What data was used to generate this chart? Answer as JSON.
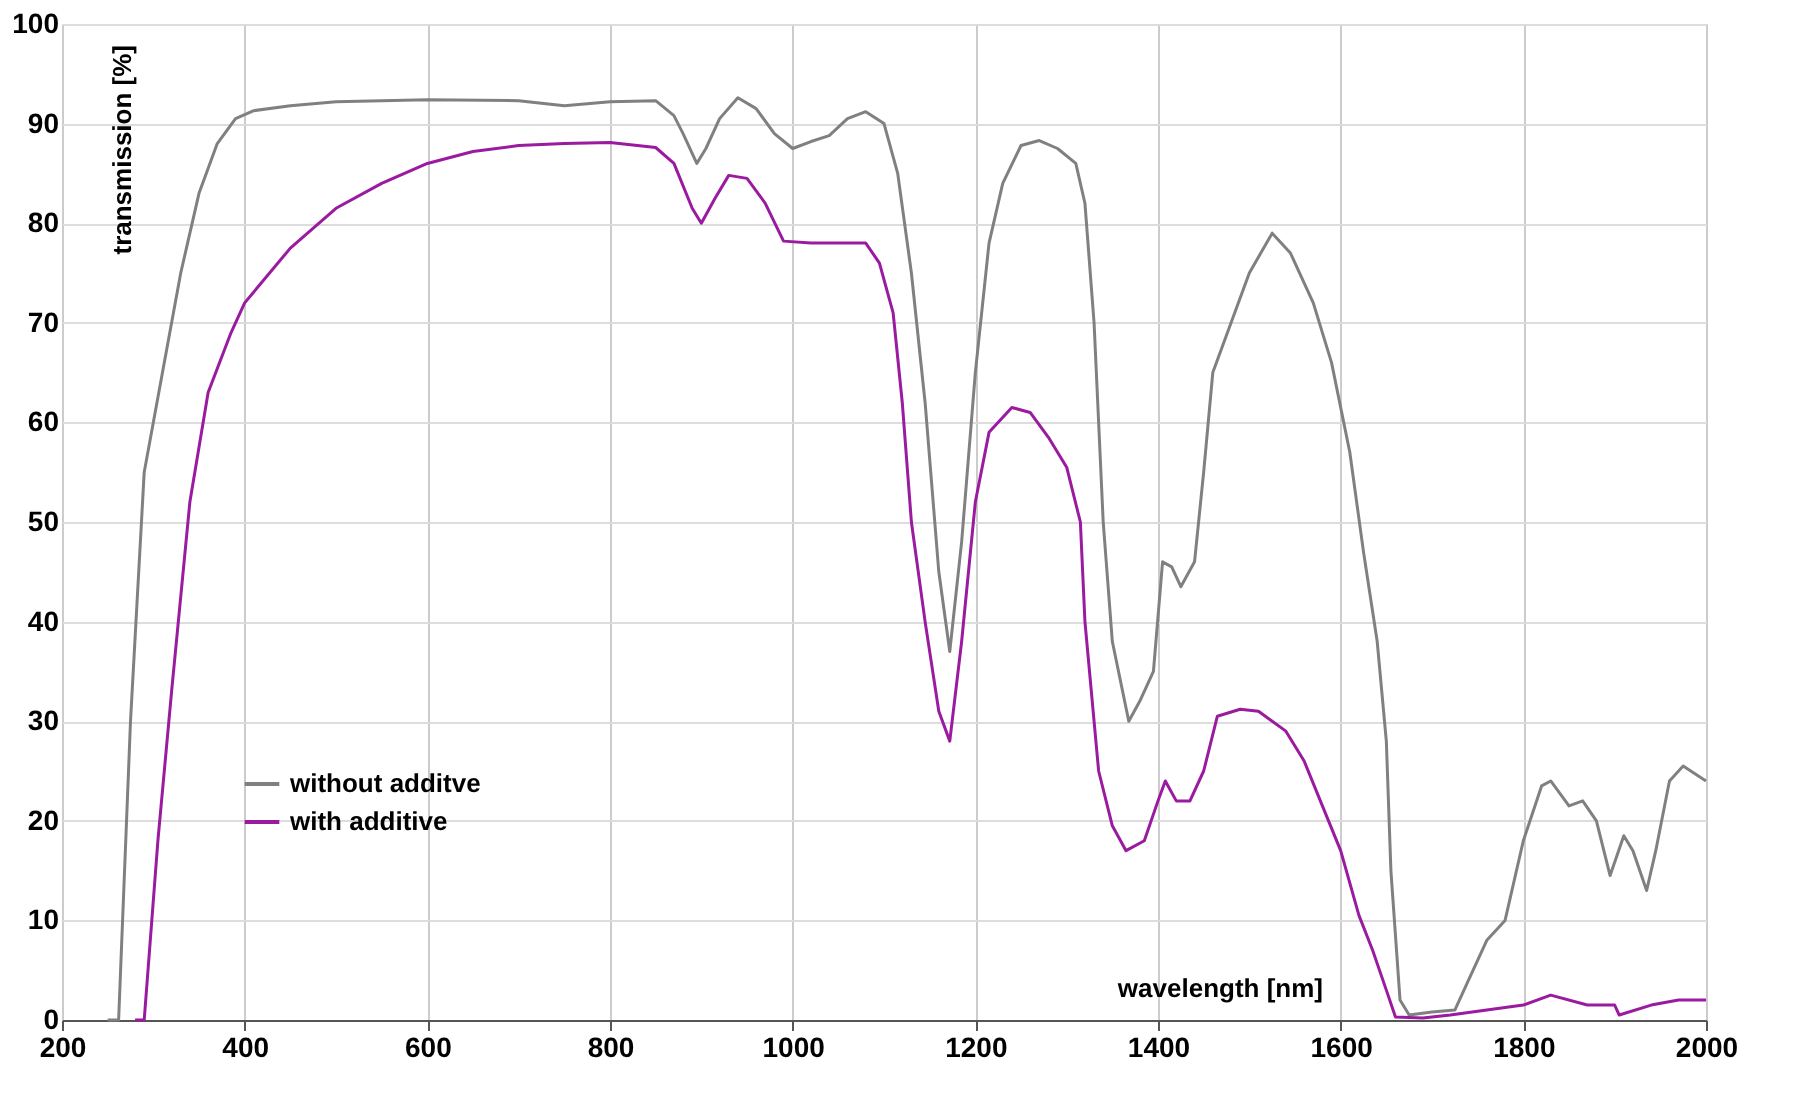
{
  "chart_data": {
    "type": "line",
    "xlabel": "wavelength [nm]",
    "ylabel": "transmission [%]",
    "xlim": [
      200,
      2000
    ],
    "xticks": [
      200,
      400,
      600,
      800,
      1000,
      1200,
      1400,
      1600,
      1800,
      2000
    ],
    "ylim": [
      0,
      100
    ],
    "yticks": [
      0,
      10,
      20,
      30,
      40,
      50,
      60,
      70,
      80,
      90,
      100
    ],
    "grid": true,
    "legend": "bottom left",
    "marker": "none",
    "line_style": "solid",
    "series": [
      {
        "name": "without additve",
        "color": "#808080",
        "x": [
          250,
          262,
          275,
          290,
          310,
          330,
          350,
          370,
          390,
          410,
          450,
          500,
          600,
          700,
          750,
          800,
          850,
          870,
          880,
          895,
          905,
          920,
          940,
          960,
          980,
          1000,
          1020,
          1040,
          1060,
          1080,
          1100,
          1115,
          1130,
          1145,
          1160,
          1172,
          1185,
          1200,
          1215,
          1230,
          1250,
          1270,
          1290,
          1310,
          1320,
          1330,
          1340,
          1350,
          1368,
          1380,
          1395,
          1405,
          1415,
          1425,
          1440,
          1450,
          1460,
          1480,
          1500,
          1525,
          1545,
          1570,
          1590,
          1610,
          1625,
          1640,
          1650,
          1655,
          1665,
          1675,
          1700,
          1725,
          1740,
          1760,
          1780,
          1800,
          1820,
          1830,
          1850,
          1865,
          1880,
          1895,
          1910,
          1920,
          1935,
          1945,
          1960,
          1975,
          2000
        ],
        "values": [
          0,
          0,
          30,
          55,
          65,
          75,
          83,
          88,
          90.5,
          91.3,
          91.8,
          92.2,
          92.4,
          92.3,
          91.8,
          92.2,
          92.3,
          90.8,
          89,
          86,
          87.5,
          90.5,
          92.6,
          91.5,
          89,
          87.5,
          88.2,
          88.8,
          90.5,
          91.2,
          90,
          85,
          75,
          62,
          45,
          37,
          48,
          65,
          78,
          84,
          87.8,
          88.3,
          87.5,
          86,
          82,
          70,
          50,
          38,
          30,
          32,
          35,
          46,
          45.5,
          43.5,
          46,
          55,
          65,
          70,
          75,
          79,
          77,
          72,
          66,
          57,
          47,
          38,
          28,
          15,
          2,
          0.5,
          0.8,
          1,
          4,
          8,
          10,
          18,
          23.5,
          24,
          21.5,
          22,
          20,
          14.5,
          18.5,
          17,
          13,
          17,
          24,
          25.5,
          24
        ]
      },
      {
        "name": "with additive",
        "color": "#9a1aa0",
        "x": [
          280,
          290,
          305,
          320,
          340,
          360,
          385,
          400,
          450,
          500,
          550,
          600,
          650,
          700,
          750,
          800,
          850,
          870,
          890,
          900,
          915,
          930,
          950,
          970,
          990,
          1020,
          1060,
          1080,
          1095,
          1110,
          1120,
          1130,
          1145,
          1160,
          1172,
          1185,
          1200,
          1215,
          1240,
          1260,
          1280,
          1300,
          1315,
          1320,
          1335,
          1350,
          1365,
          1385,
          1400,
          1408,
          1420,
          1435,
          1450,
          1465,
          1490,
          1510,
          1540,
          1560,
          1580,
          1600,
          1620,
          1635,
          1650,
          1660,
          1690,
          1720,
          1760,
          1800,
          1830,
          1870,
          1900,
          1905,
          1940,
          1970,
          2000
        ],
        "values": [
          0,
          0,
          18,
          33,
          52,
          63,
          69,
          72,
          77.5,
          81.5,
          84,
          86,
          87.2,
          87.8,
          88,
          88.1,
          87.6,
          86,
          81.5,
          80,
          82.5,
          84.8,
          84.5,
          82,
          78.2,
          78,
          78,
          78,
          76,
          71,
          62,
          50,
          40,
          31,
          28,
          38,
          52,
          59,
          61.5,
          61,
          58.5,
          55.5,
          50,
          40,
          25,
          19.5,
          17,
          18,
          22,
          24,
          22,
          22,
          25,
          30.5,
          31.2,
          31,
          29,
          26,
          21.5,
          17,
          10.5,
          7,
          3,
          0.3,
          0.2,
          0.5,
          1,
          1.5,
          2.5,
          1.5,
          1.5,
          0.5,
          1.5,
          2,
          2
        ]
      }
    ]
  }
}
